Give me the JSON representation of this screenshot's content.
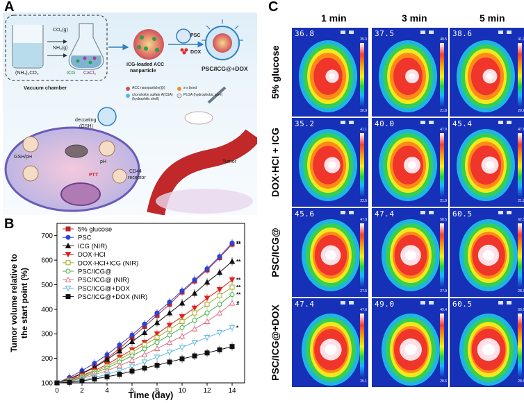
{
  "panels": {
    "a": "A",
    "b": "B",
    "c": "C"
  },
  "panelA": {
    "vacuum_chamber": "Vacuum chamber",
    "co2": "CO₂(g)",
    "nh3": "NH₃(g)",
    "ammonium": "(NH₄)₂CO₃",
    "icg": "ICG",
    "cacl": "CaCl₂",
    "icg_acc": "ICG-loaded ACC",
    "nanparticle": "nanparticle",
    "psc": "PSC",
    "dox": "DOX",
    "psc_final": "PSC/ICG@+DOX",
    "legend_acc": "ACC nanoparticle(@)",
    "legend_ss": "s-s bond",
    "legend_csa": "chondroitin sulfate A(CSA)",
    "legend_csa2": "(hydrophilic shell)",
    "legend_plga": "PLGA (hydrophobic core)",
    "decoating": "decoating",
    "gsh": "(GSH)",
    "gsh_ph": "GSH/pH",
    "ph": "pH",
    "ptt": "PTT",
    "cd44": "CD44",
    "receptor": "receptor",
    "tumor": "Tumor"
  },
  "chart_data": {
    "type": "line",
    "xlabel": "Time (day)",
    "ylabel": "Tumor volume relative to the start point (%)",
    "xlim": [
      0,
      15
    ],
    "ylim": [
      100,
      750
    ],
    "xticks": [
      0,
      2,
      4,
      6,
      8,
      10,
      12,
      14
    ],
    "yticks": [
      100,
      200,
      300,
      400,
      500,
      600,
      700
    ],
    "x": [
      0,
      1,
      2,
      3,
      4,
      5,
      6,
      7,
      8,
      9,
      10,
      11,
      12,
      13,
      14
    ],
    "series": [
      {
        "name": "5% glucose",
        "color": "#b5262a",
        "marker": "square",
        "filled": true,
        "values": [
          100,
          118,
          140,
          165,
          200,
          240,
          285,
          330,
          375,
          420,
          470,
          515,
          560,
          610,
          665
        ],
        "sig": "**"
      },
      {
        "name": "PSC",
        "color": "#2b44d6",
        "marker": "circle",
        "filled": true,
        "values": [
          100,
          122,
          150,
          180,
          215,
          255,
          295,
          340,
          385,
          430,
          475,
          520,
          565,
          615,
          670
        ],
        "sig": "**"
      },
      {
        "name": "ICG (NIR)",
        "color": "#111111",
        "marker": "triangle",
        "filled": true,
        "values": [
          100,
          115,
          138,
          162,
          195,
          230,
          268,
          305,
          345,
          385,
          425,
          465,
          510,
          550,
          595
        ],
        "sig": "**"
      },
      {
        "name": "DOX·HCl",
        "color": "#e02020",
        "marker": "triangle-down",
        "filled": true,
        "values": [
          100,
          112,
          130,
          150,
          175,
          205,
          235,
          265,
          300,
          335,
          370,
          405,
          445,
          480,
          520
        ],
        "sig": "**"
      },
      {
        "name": "DOX·HCl+ICG (NIR)",
        "color": "#a7a520",
        "marker": "square",
        "filled": false,
        "values": [
          100,
          110,
          126,
          145,
          168,
          195,
          225,
          255,
          285,
          318,
          350,
          385,
          420,
          455,
          490
        ],
        "sig": "**"
      },
      {
        "name": "PSC/ICG@",
        "color": "#43b043",
        "marker": "circle",
        "filled": false,
        "values": [
          100,
          108,
          122,
          140,
          160,
          185,
          210,
          238,
          265,
          295,
          325,
          355,
          385,
          420,
          460
        ],
        "sig": "**"
      },
      {
        "name": "PSC/ICG@ (NIR)",
        "color": "#e07080",
        "marker": "triangle",
        "filled": false,
        "values": [
          100,
          106,
          118,
          133,
          150,
          170,
          192,
          215,
          240,
          265,
          290,
          320,
          350,
          385,
          425
        ],
        "sig": "#"
      },
      {
        "name": "PSC/ICG@+DOX",
        "color": "#60b8e0",
        "marker": "triangle-down",
        "filled": false,
        "values": [
          100,
          104,
          112,
          122,
          135,
          150,
          168,
          185,
          205,
          225,
          245,
          265,
          285,
          305,
          325
        ],
        "sig": "*"
      },
      {
        "name": "PSC/ICG@+DOX (NIR)",
        "color": "#111111",
        "marker": "square",
        "filled": true,
        "values": [
          100,
          102,
          108,
          116,
          125,
          135,
          148,
          160,
          172,
          185,
          198,
          210,
          222,
          235,
          248
        ],
        "sig": ""
      }
    ]
  },
  "panelC": {
    "columns": [
      "1 min",
      "3 min",
      "5 min"
    ],
    "rows": [
      {
        "label": "5% glucose",
        "temps": [
          "36.8",
          "37.5",
          "38.6"
        ],
        "top": [
          "39.3",
          "40.5",
          "41.3"
        ],
        "bottom": [
          "20.9",
          "21.8",
          "20.2"
        ]
      },
      {
        "label": "DOX·HCl + ICG",
        "temps": [
          "35.2",
          "40.0",
          "45.4"
        ],
        "top": [
          "41.1",
          "47.0",
          "47.1"
        ],
        "bottom": [
          "22.5",
          "21.9",
          "21.8"
        ]
      },
      {
        "label": "PSC/ICG@",
        "temps": [
          "45.6",
          "47.4",
          "60.5"
        ],
        "top": [
          "47.9",
          "58.5",
          "62.3"
        ],
        "bottom": [
          "27.5",
          "27.9",
          "28.3"
        ]
      },
      {
        "label": "PSC/ICG@+DOX",
        "temps": [
          "47.4",
          "49.0",
          "60.5"
        ],
        "top": [
          "47.6",
          "49.4",
          "60.6"
        ],
        "bottom": [
          "25.1",
          "28.6",
          "28.5"
        ]
      }
    ]
  }
}
